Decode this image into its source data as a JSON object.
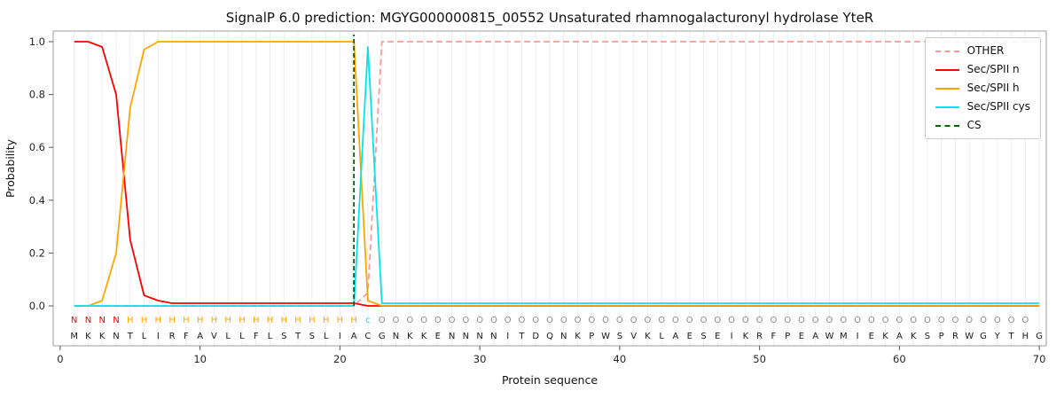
{
  "title": "SignalP 6.0 prediction: MGYG000000815_00552 Unsaturated rhamnogalacturonyl hydrolase YteR",
  "chart_data": {
    "type": "line",
    "title": "SignalP 6.0 prediction: MGYG000000815_00552 Unsaturated rhamnogalacturonyl hydrolase YteR",
    "xlabel": "Protein sequence",
    "ylabel": "Probability",
    "xlim": [
      -0.5,
      70.5
    ],
    "ylim": [
      -0.15,
      1.04
    ],
    "xticks": [
      0,
      10,
      20,
      30,
      40,
      50,
      60,
      70
    ],
    "ytick_labels": [
      "0.0",
      "0.2",
      "0.4",
      "0.6",
      "0.8",
      "1.0"
    ],
    "grid": "vertical gridlines at every residue position 1-70",
    "legend_position": "upper right",
    "sequence": "MKKNTLIRFAVLLFLSTSLIACGNKKENNNNITDQNKPWSVKLAESEIKRFPEAWMIEKAKSPRWGYTHG",
    "region_labels": "NNNNHHHHHHHHHHHHHHHHHcOOOOOOOOOOOOOOOOOOOOOOOOOOOOOOOOOOOOOOOOOOOOOOO",
    "region_colors": {
      "N": "#ff0000",
      "H": "#ffa500",
      "c": "#00e5ee",
      "O": "#8c8c8c"
    },
    "series": [
      {
        "name": "OTHER",
        "color": "#ff9999",
        "dash": true,
        "values": [
          0,
          0,
          0,
          0,
          0,
          0,
          0,
          0,
          0,
          0,
          0,
          0,
          0,
          0,
          0,
          0,
          0,
          0,
          0,
          0,
          0,
          0.05,
          1,
          1,
          1,
          1,
          1,
          1,
          1,
          1,
          1,
          1,
          1,
          1,
          1,
          1,
          1,
          1,
          1,
          1,
          1,
          1,
          1,
          1,
          1,
          1,
          1,
          1,
          1,
          1,
          1,
          1,
          1,
          1,
          1,
          1,
          1,
          1,
          1,
          1,
          1,
          1,
          1,
          1,
          1,
          1,
          1,
          1,
          1,
          1
        ]
      },
      {
        "name": "Sec/SPII n",
        "color": "#ff0000",
        "dash": false,
        "values": [
          1,
          1,
          0.98,
          0.8,
          0.25,
          0.04,
          0.02,
          0.01,
          0.01,
          0.01,
          0.01,
          0.01,
          0.01,
          0.01,
          0.01,
          0.01,
          0.01,
          0.01,
          0.01,
          0.01,
          0.01,
          0,
          0,
          0,
          0,
          0,
          0,
          0,
          0,
          0,
          0,
          0,
          0,
          0,
          0,
          0,
          0,
          0,
          0,
          0,
          0,
          0,
          0,
          0,
          0,
          0,
          0,
          0,
          0,
          0,
          0,
          0,
          0,
          0,
          0,
          0,
          0,
          0,
          0,
          0,
          0,
          0,
          0,
          0,
          0,
          0,
          0,
          0,
          0,
          0
        ]
      },
      {
        "name": "Sec/SPII h",
        "color": "#ffa500",
        "dash": false,
        "values": [
          0,
          0,
          0.02,
          0.2,
          0.75,
          0.97,
          1,
          1,
          1,
          1,
          1,
          1,
          1,
          1,
          1,
          1,
          1,
          1,
          1,
          1,
          1,
          0.02,
          0,
          0,
          0,
          0,
          0,
          0,
          0,
          0,
          0,
          0,
          0,
          0,
          0,
          0,
          0,
          0,
          0,
          0,
          0,
          0,
          0,
          0,
          0,
          0,
          0,
          0,
          0,
          0,
          0,
          0,
          0,
          0,
          0,
          0,
          0,
          0,
          0,
          0,
          0,
          0,
          0,
          0,
          0,
          0,
          0,
          0,
          0,
          0
        ]
      },
      {
        "name": "Sec/SPII cys",
        "color": "#00e5ee",
        "dash": false,
        "values": [
          0,
          0,
          0,
          0,
          0,
          0,
          0,
          0,
          0,
          0,
          0,
          0,
          0,
          0,
          0,
          0,
          0,
          0,
          0,
          0,
          0,
          0.98,
          0.01,
          0.01,
          0.01,
          0.01,
          0.01,
          0.01,
          0.01,
          0.01,
          0.01,
          0.01,
          0.01,
          0.01,
          0.01,
          0.01,
          0.01,
          0.01,
          0.01,
          0.01,
          0.01,
          0.01,
          0.01,
          0.01,
          0.01,
          0.01,
          0.01,
          0.01,
          0.01,
          0.01,
          0.01,
          0.01,
          0.01,
          0.01,
          0.01,
          0.01,
          0.01,
          0.01,
          0.01,
          0.01,
          0.01,
          0.01,
          0.01,
          0.01,
          0.01,
          0.01,
          0.01,
          0.01,
          0.01,
          0.01
        ]
      }
    ],
    "cs_marker": {
      "label": "CS",
      "x": 21,
      "color": "#006400",
      "dash": true
    },
    "legend": [
      {
        "label": "OTHER",
        "color": "#ff9999",
        "dash": true
      },
      {
        "label": "Sec/SPII n",
        "color": "#ff0000",
        "dash": false
      },
      {
        "label": "Sec/SPII h",
        "color": "#ffa500",
        "dash": false
      },
      {
        "label": "Sec/SPII cys",
        "color": "#00e5ee",
        "dash": false
      },
      {
        "label": "CS",
        "color": "#006400",
        "dash": true
      }
    ]
  }
}
